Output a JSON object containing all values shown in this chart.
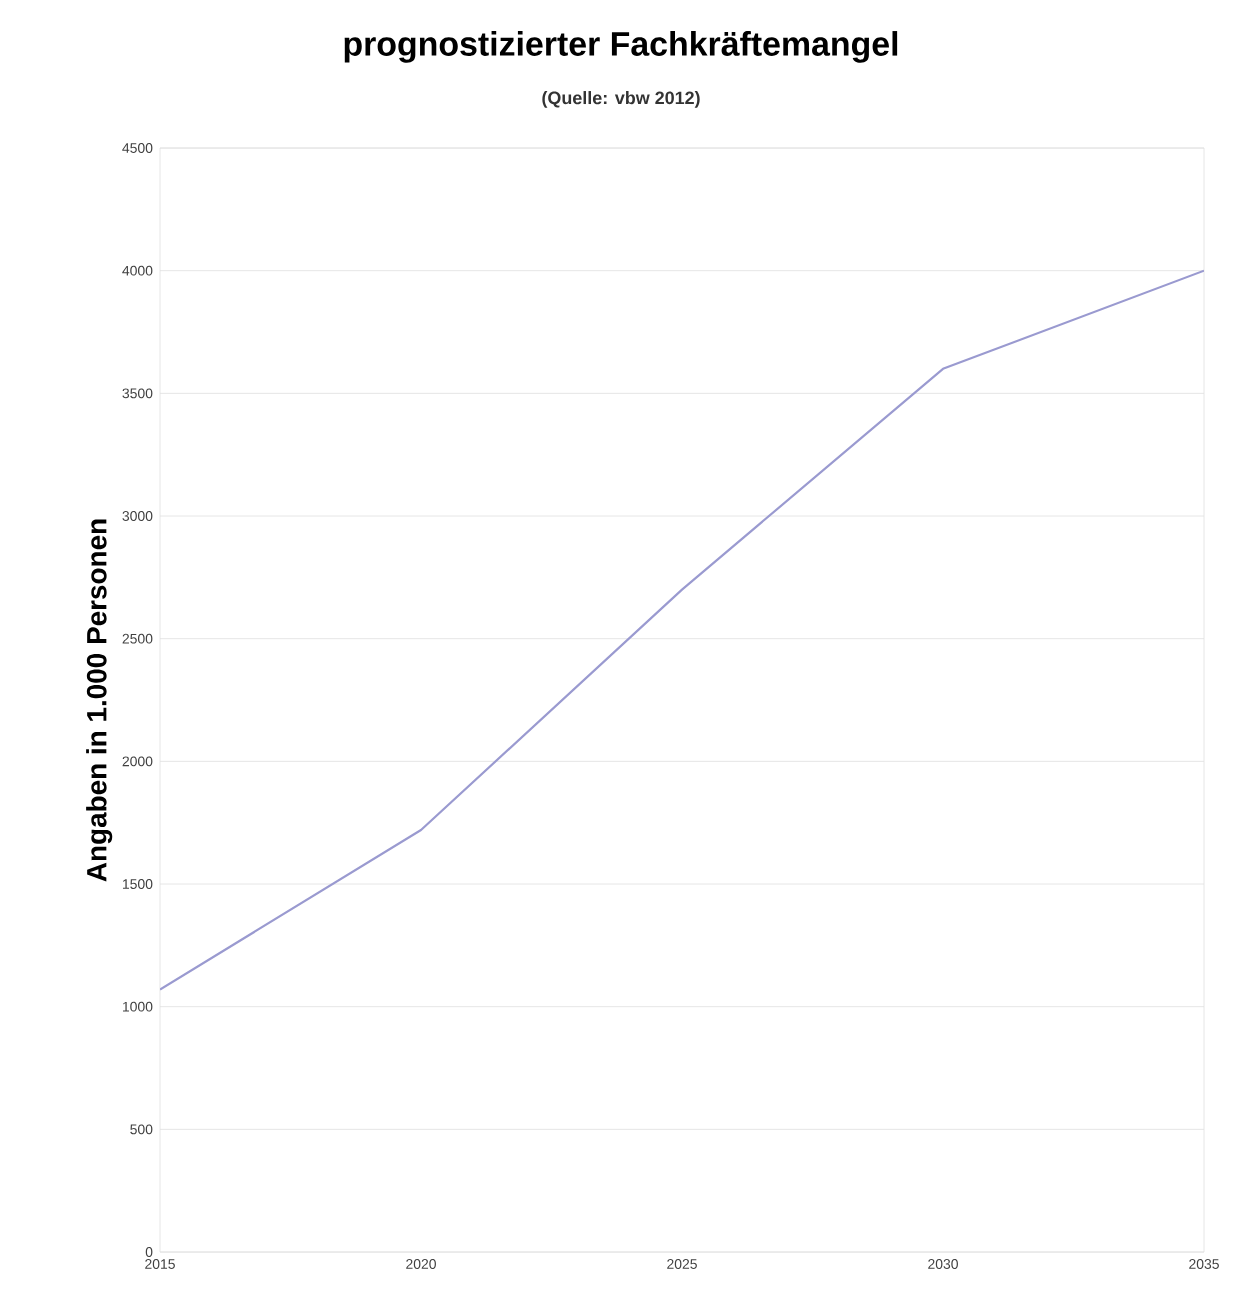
{
  "chart_data": {
    "type": "line",
    "title": "prognostizierter Fachkräftemangel",
    "subtitle": "(Quelle: vbw 2012)",
    "ylabel": "Angaben in 1.000 Personen",
    "x": [
      2015,
      2020,
      2025,
      2030,
      2035
    ],
    "series": [
      {
        "color": "#9a9ad0",
        "values": [
          1070,
          1720,
          2700,
          3600,
          4000
        ]
      }
    ],
    "xlim": [
      2015,
      2035
    ],
    "xticks": [
      2015,
      2020,
      2025,
      2030,
      2035
    ],
    "ylim": [
      0,
      4500
    ],
    "yticks": [
      0,
      500,
      1000,
      1500,
      2000,
      2500,
      3000,
      3500,
      4000,
      4500
    ],
    "grid": "y",
    "line_style": "solid",
    "marker": "none"
  }
}
